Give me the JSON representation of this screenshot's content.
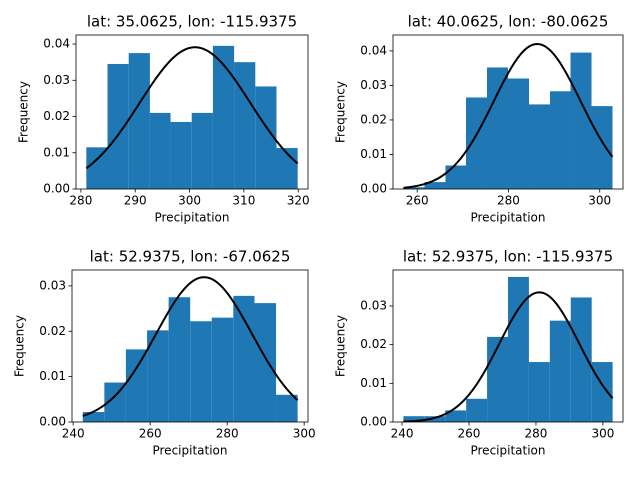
{
  "chart_data": [
    {
      "type": "histogram",
      "title": "lat: 35.0625, lon: -115.9375",
      "xlabel": "Precipitation",
      "ylabel": "Frequency",
      "bins": [
        281.0,
        284.9,
        288.8,
        292.7,
        296.5,
        300.4,
        304.3,
        308.2,
        312.1,
        316.0,
        319.9
      ],
      "values": [
        0.0115,
        0.0345,
        0.0375,
        0.021,
        0.0185,
        0.021,
        0.0395,
        0.035,
        0.0283,
        0.0113
      ],
      "color": "#1f77b4",
      "fit": {
        "mean": 301,
        "std": 10.2,
        "color": "#000000"
      },
      "xlim": [
        279.1,
        321.8
      ],
      "ylim": [
        0,
        0.0425
      ],
      "xticks": [
        280,
        290,
        300,
        310,
        320
      ],
      "yticks": [
        {
          "value": 0,
          "label": "0.00"
        },
        {
          "value": 0.01,
          "label": "0.01"
        },
        {
          "value": 0.02,
          "label": "0.02"
        },
        {
          "value": 0.03,
          "label": "0.03"
        },
        {
          "value": 0.04,
          "label": "0.04"
        }
      ]
    },
    {
      "type": "histogram",
      "title": "lat: 40.0625, lon: -80.0625",
      "xlabel": "Precipitation",
      "ylabel": "Frequency",
      "bins": [
        257.0,
        261.6,
        266.2,
        270.7,
        275.3,
        279.9,
        284.5,
        289.1,
        293.6,
        298.2,
        302.8
      ],
      "values": [
        0.0005,
        0.002,
        0.0068,
        0.0265,
        0.0352,
        0.032,
        0.0245,
        0.0283,
        0.0395,
        0.024
      ],
      "color": "#1f77b4",
      "fit": {
        "mean": 286.3,
        "std": 9.5,
        "color": "#000000"
      },
      "xlim": [
        254.7,
        305.1
      ],
      "ylim": [
        0,
        0.0446
      ],
      "xticks": [
        260,
        280,
        300
      ],
      "yticks": [
        {
          "value": 0,
          "label": "0.00"
        },
        {
          "value": 0.01,
          "label": "0.01"
        },
        {
          "value": 0.02,
          "label": "0.02"
        },
        {
          "value": 0.03,
          "label": "0.03"
        },
        {
          "value": 0.04,
          "label": "0.04"
        }
      ]
    },
    {
      "type": "histogram",
      "title": "lat: 52.9375, lon: -67.0625",
      "xlabel": "Precipitation",
      "ylabel": "Frequency",
      "bins": [
        242.5,
        248.1,
        253.7,
        259.2,
        264.8,
        270.4,
        276.0,
        281.6,
        287.1,
        292.7,
        298.3
      ],
      "values": [
        0.0022,
        0.0087,
        0.016,
        0.0202,
        0.0275,
        0.0222,
        0.023,
        0.0278,
        0.0262,
        0.006
      ],
      "color": "#1f77b4",
      "fit": {
        "mean": 274,
        "std": 12.5,
        "color": "#000000"
      },
      "xlim": [
        239.7,
        301.0
      ],
      "ylim": [
        0,
        0.0335
      ],
      "xticks": [
        240,
        260,
        280,
        300
      ],
      "yticks": [
        {
          "value": 0,
          "label": "0.00"
        },
        {
          "value": 0.01,
          "label": "0.01"
        },
        {
          "value": 0.02,
          "label": "0.02"
        },
        {
          "value": 0.03,
          "label": "0.03"
        }
      ]
    },
    {
      "type": "histogram",
      "title": "lat: 52.9375, lon: -115.9375",
      "xlabel": "Precipitation",
      "ylabel": "Frequency",
      "bins": [
        240.4,
        246.65,
        252.9,
        259.15,
        265.4,
        271.65,
        277.9,
        284.15,
        290.4,
        296.65,
        302.9
      ],
      "values": [
        0.0015,
        0.0015,
        0.003,
        0.006,
        0.022,
        0.0375,
        0.0155,
        0.0262,
        0.0322,
        0.0155
      ],
      "color": "#1f77b4",
      "fit": {
        "mean": 281,
        "std": 11.9,
        "color": "#000000"
      },
      "xlim": [
        237.3,
        306.0
      ],
      "ylim": [
        0,
        0.0393
      ],
      "xticks": [
        240,
        260,
        280,
        300
      ],
      "yticks": [
        {
          "value": 0,
          "label": "0.00"
        },
        {
          "value": 0.01,
          "label": "0.01"
        },
        {
          "value": 0.02,
          "label": "0.02"
        },
        {
          "value": 0.03,
          "label": "0.03"
        }
      ]
    }
  ]
}
